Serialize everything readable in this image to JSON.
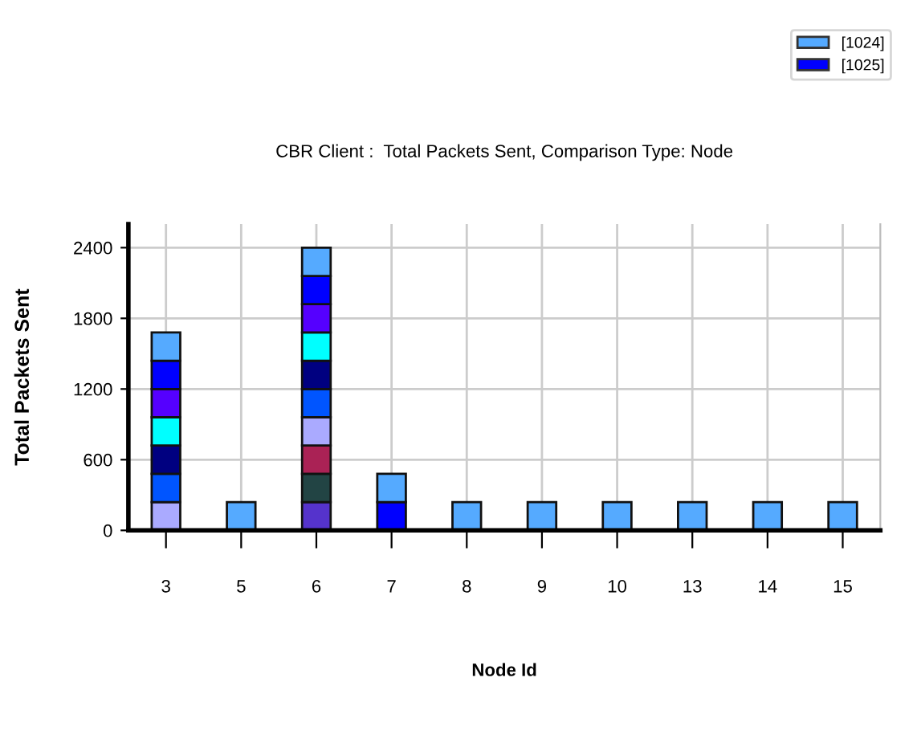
{
  "chart_data": {
    "type": "bar",
    "stacked": true,
    "title": "CBR Client :  Total Packets Sent, Comparison Type: Node",
    "xlabel": "Node Id",
    "ylabel": "Total Packets Sent",
    "categories": [
      "3",
      "5",
      "6",
      "7",
      "8",
      "9",
      "10",
      "13",
      "14",
      "15"
    ],
    "series": [
      {
        "color": "#5533cc",
        "values": [
          null,
          null,
          240,
          null,
          null,
          null,
          null,
          null,
          null,
          null
        ]
      },
      {
        "color": "#224444",
        "values": [
          null,
          null,
          240,
          null,
          null,
          null,
          null,
          null,
          null,
          null
        ]
      },
      {
        "color": "#aa2255",
        "values": [
          null,
          null,
          240,
          null,
          null,
          null,
          null,
          null,
          null,
          null
        ]
      },
      {
        "color": "#aaaaff",
        "values": [
          240,
          null,
          240,
          null,
          null,
          null,
          null,
          null,
          null,
          null
        ]
      },
      {
        "color": "#0055ff",
        "values": [
          240,
          null,
          240,
          null,
          null,
          null,
          null,
          null,
          null,
          null
        ]
      },
      {
        "color": "#000080",
        "values": [
          240,
          null,
          240,
          null,
          null,
          null,
          null,
          null,
          null,
          null
        ]
      },
      {
        "color": "#00ffff",
        "values": [
          240,
          null,
          240,
          null,
          null,
          null,
          null,
          null,
          null,
          null
        ]
      },
      {
        "color": "#5500ff",
        "values": [
          240,
          null,
          240,
          null,
          null,
          null,
          null,
          null,
          null,
          null
        ]
      },
      {
        "name": "[1025]",
        "color": "#0000ff",
        "values": [
          240,
          null,
          240,
          240,
          null,
          null,
          null,
          null,
          null,
          null
        ]
      },
      {
        "name": "[1024]",
        "color": "#55aaff",
        "values": [
          240,
          240,
          240,
          240,
          240,
          240,
          240,
          240,
          240,
          240
        ]
      }
    ],
    "ylim": [
      0,
      2600
    ],
    "yticks": [
      0,
      600,
      1200,
      1800,
      2400
    ],
    "grid": true,
    "legend": "top right"
  }
}
